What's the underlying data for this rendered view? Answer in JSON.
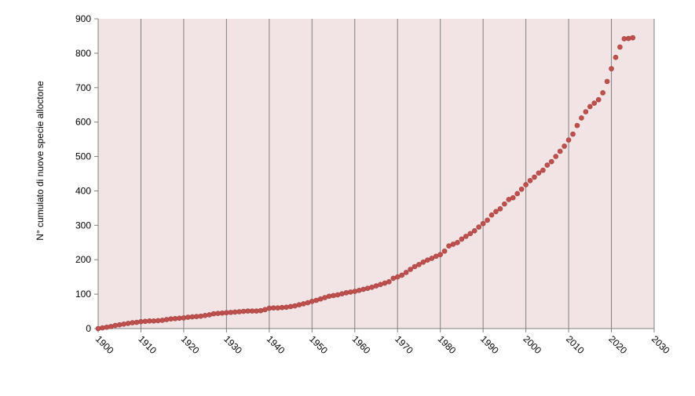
{
  "chart_data": {
    "type": "scatter",
    "y_label": "N° cumulato di nuove specie alloctone",
    "x": [
      1900,
      1901,
      1902,
      1903,
      1904,
      1905,
      1906,
      1907,
      1908,
      1909,
      1910,
      1911,
      1912,
      1913,
      1914,
      1915,
      1916,
      1917,
      1918,
      1919,
      1920,
      1921,
      1922,
      1923,
      1924,
      1925,
      1926,
      1927,
      1928,
      1929,
      1930,
      1931,
      1932,
      1933,
      1934,
      1935,
      1936,
      1937,
      1938,
      1939,
      1940,
      1941,
      1942,
      1943,
      1944,
      1945,
      1946,
      1947,
      1948,
      1949,
      1950,
      1951,
      1952,
      1953,
      1954,
      1955,
      1956,
      1957,
      1958,
      1959,
      1960,
      1961,
      1962,
      1963,
      1964,
      1965,
      1966,
      1967,
      1968,
      1969,
      1970,
      1971,
      1972,
      1973,
      1974,
      1975,
      1976,
      1977,
      1978,
      1979,
      1980,
      1981,
      1982,
      1983,
      1984,
      1985,
      1986,
      1987,
      1988,
      1989,
      1990,
      1991,
      1992,
      1993,
      1994,
      1995,
      1996,
      1997,
      1998,
      1999,
      2000,
      2001,
      2002,
      2003,
      2004,
      2005,
      2006,
      2007,
      2008,
      2009,
      2010,
      2011,
      2012,
      2013,
      2014,
      2015,
      2016,
      2017,
      2018,
      2019,
      2020,
      2021,
      2022,
      2023,
      2024,
      2025
    ],
    "values": [
      0,
      2,
      4,
      6,
      9,
      11,
      13,
      15,
      17,
      18,
      20,
      21,
      22,
      22,
      23,
      24,
      26,
      28,
      29,
      30,
      31,
      33,
      34,
      35,
      36,
      38,
      40,
      43,
      44,
      45,
      46,
      47,
      48,
      49,
      50,
      51,
      51,
      51,
      52,
      55,
      59,
      60,
      60,
      61,
      62,
      64,
      66,
      69,
      72,
      75,
      79,
      82,
      86,
      90,
      94,
      96,
      98,
      101,
      104,
      106,
      108,
      111,
      114,
      117,
      120,
      124,
      128,
      132,
      136,
      146,
      150,
      155,
      163,
      172,
      180,
      186,
      193,
      199,
      204,
      210,
      215,
      225,
      240,
      245,
      250,
      260,
      268,
      276,
      284,
      295,
      305,
      315,
      330,
      340,
      348,
      362,
      375,
      380,
      392,
      405,
      418,
      430,
      440,
      452,
      460,
      475,
      485,
      500,
      515,
      530,
      548,
      565,
      590,
      612,
      630,
      645,
      655,
      665,
      685,
      718,
      755,
      788,
      818,
      842,
      843,
      845
    ],
    "color": "#c0504d",
    "plot_background": "#f2e4e4",
    "xlim": [
      1900,
      2030
    ],
    "xticks": [
      1900,
      1910,
      1920,
      1930,
      1940,
      1950,
      1960,
      1970,
      1980,
      1990,
      2000,
      2010,
      2020,
      2030
    ],
    "ylim": [
      0,
      900
    ],
    "yticks": [
      0,
      100,
      200,
      300,
      400,
      500,
      600,
      700,
      800,
      900
    ],
    "x_grid": true
  }
}
